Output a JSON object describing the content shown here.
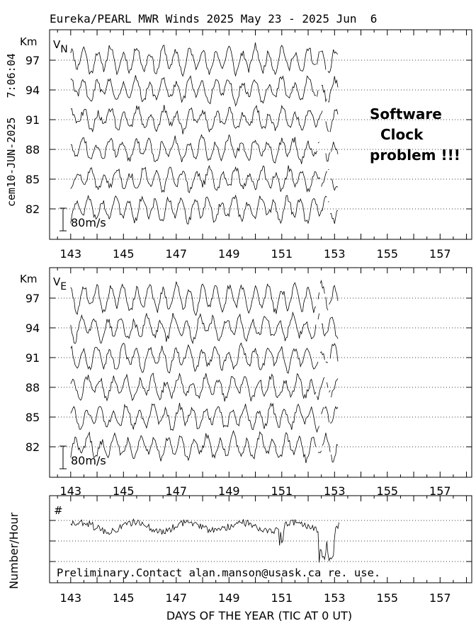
{
  "title": "Eureka/PEARL MWR Winds 2025 May 23 - 2025 Jun  6",
  "side_label": "cem10-JUN-2025   7:06:04",
  "xlabel": "DAYS OF THE YEAR (TIC AT 0 UT)",
  "warning": [
    "Software",
    "Clock",
    "problem !!!"
  ],
  "footer_note": "Preliminary.Contact alan.manson@usask.ca re. use.",
  "colors": {
    "line": "#000000",
    "background": "#ffffff",
    "grid": "#000000"
  },
  "chart_data": [
    {
      "type": "line",
      "panel": "top",
      "component": "V",
      "component_sub": "N",
      "unit_label": "Km",
      "altitudes": [
        "97",
        "94",
        "91",
        "88",
        "85",
        "82"
      ],
      "x_ticks": [
        "143",
        "145",
        "147",
        "149",
        "151",
        "153",
        "155",
        "157"
      ],
      "xlim": [
        142.2,
        158.2
      ],
      "scale_label": "80m/s",
      "data_range": [
        143.0,
        153.15
      ],
      "seed": 11
    },
    {
      "type": "line",
      "panel": "middle",
      "component": "V",
      "component_sub": "E",
      "unit_label": "Km",
      "altitudes": [
        "97",
        "94",
        "91",
        "88",
        "85",
        "82"
      ],
      "x_ticks": [
        "143",
        "145",
        "147",
        "149",
        "151",
        "153",
        "155",
        "157"
      ],
      "xlim": [
        142.2,
        158.2
      ],
      "scale_label": "80m/s",
      "data_range": [
        143.0,
        153.15
      ],
      "seed": 29
    },
    {
      "type": "line",
      "panel": "bottom",
      "ylabel": "Number/Hour",
      "marker_label": "#",
      "x_ticks": [
        "143",
        "145",
        "147",
        "149",
        "151",
        "153",
        "155",
        "157"
      ],
      "xlim": [
        142.2,
        158.2
      ],
      "data_range": [
        143.0,
        153.2
      ],
      "seed": 47
    }
  ]
}
